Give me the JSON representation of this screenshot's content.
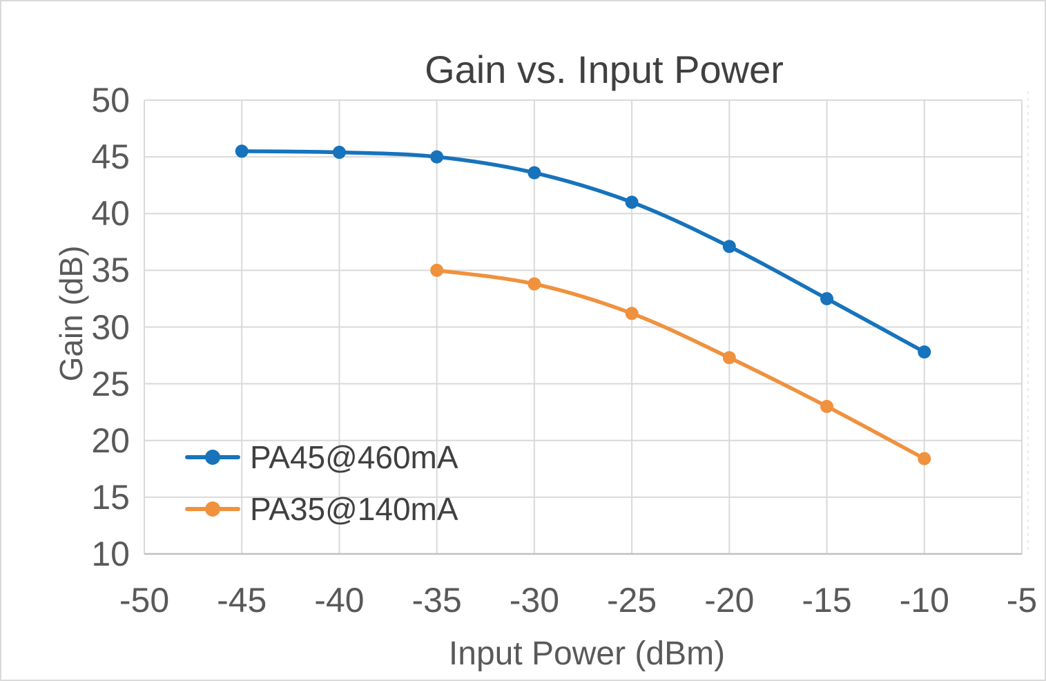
{
  "chart_data": {
    "type": "line",
    "title": "Gain vs. Input Power",
    "xlabel": "Input Power (dBm)",
    "ylabel": "Gain (dB)",
    "xlim": [
      -50,
      -5
    ],
    "ylim": [
      10,
      50
    ],
    "x_ticks": [
      -50,
      -45,
      -40,
      -35,
      -30,
      -25,
      -20,
      -15,
      -10,
      -5
    ],
    "y_ticks": [
      10,
      15,
      20,
      25,
      30,
      35,
      40,
      45,
      50
    ],
    "grid": true,
    "legend_position": "inside-bottom-left",
    "series": [
      {
        "name": "PA45@460mA",
        "color": "#1673bc",
        "marker": "circle",
        "x": [
          -45,
          -40,
          -35,
          -30,
          -25,
          -20,
          -15,
          -10
        ],
        "y": [
          45.5,
          45.4,
          45.0,
          43.6,
          41.0,
          37.1,
          32.5,
          27.8
        ]
      },
      {
        "name": "PA35@140mA",
        "color": "#f0913e",
        "marker": "circle",
        "x": [
          -35,
          -30,
          -25,
          -20,
          -15,
          -10
        ],
        "y": [
          35.0,
          33.8,
          31.2,
          27.3,
          23.0,
          18.4
        ]
      }
    ],
    "colors": {
      "title_text": "#404040",
      "axis_text": "#595959",
      "gridline": "#d9d9d9",
      "axis_line": "#bfbfbf",
      "background": "#ffffff"
    }
  }
}
